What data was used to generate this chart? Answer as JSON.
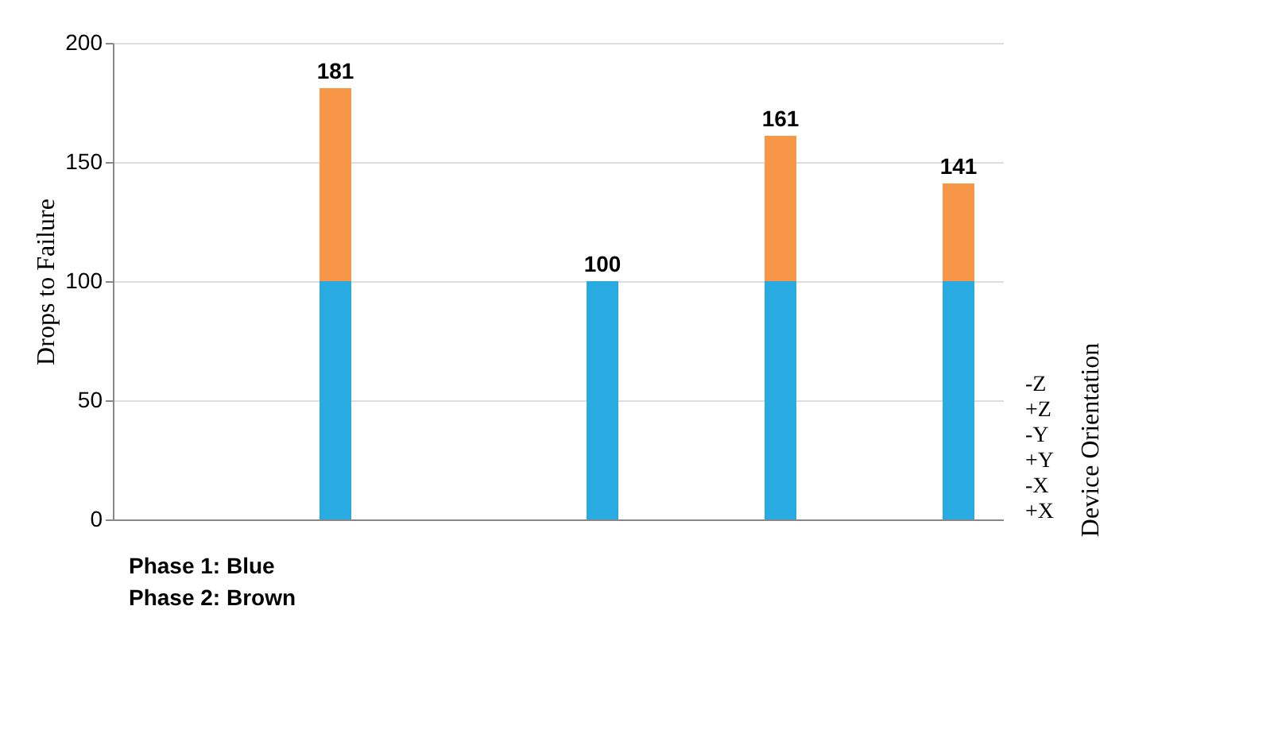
{
  "chart_data": {
    "type": "bar",
    "stacked": true,
    "ylabel": "Drops to Failure",
    "y2label": "Device Orientation",
    "categories": [
      null,
      null,
      null,
      null,
      null,
      null,
      null,
      null,
      null,
      null
    ],
    "series": [
      {
        "color": "#29abe2",
        "values": [
          null,
          null,
          100,
          null,
          null,
          100,
          null,
          100,
          null,
          100
        ]
      },
      {
        "color": "#f79646",
        "values": [
          null,
          null,
          81,
          null,
          null,
          0,
          null,
          61,
          null,
          41
        ]
      }
    ],
    "totals": [
      null,
      null,
      "181",
      null,
      null,
      "100",
      null,
      "161",
      null,
      "141"
    ],
    "ylim": [
      0,
      200
    ],
    "yticks": [
      0,
      50,
      100,
      150,
      200
    ],
    "grid": "y",
    "tick_labels": "y",
    "annotations": [
      "-Z",
      "+Z",
      "-Y",
      "+Y",
      "-X",
      "+X",
      "Phase 1: Blue",
      "Phase 2: Brown"
    ]
  }
}
